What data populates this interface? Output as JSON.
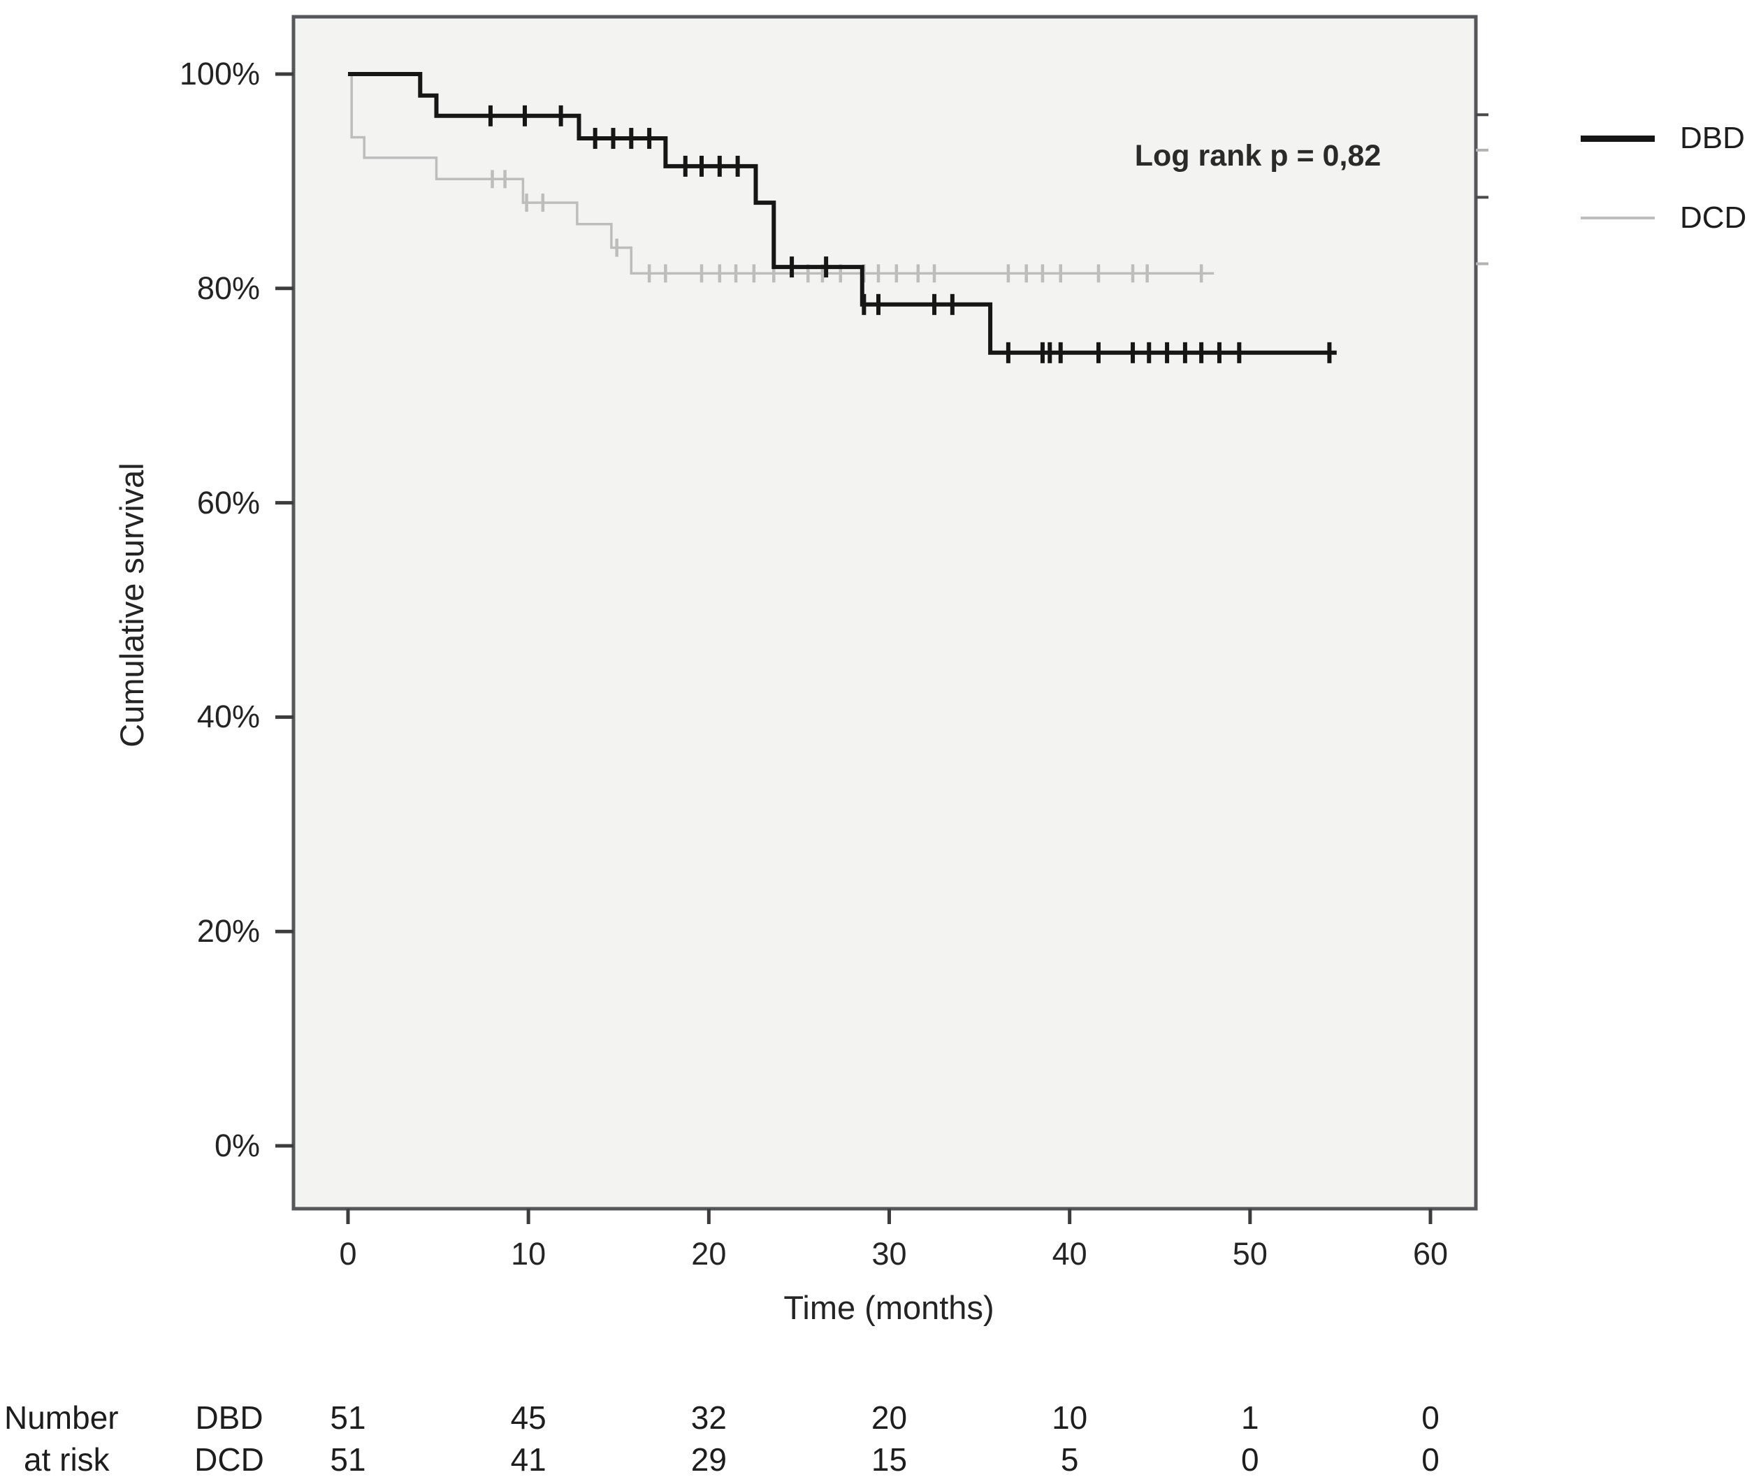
{
  "chart_data": {
    "type": "line",
    "subtype": "kaplan-meier-step",
    "title": "",
    "xlabel": "Time (months)",
    "ylabel": "Cumulative survival",
    "annotation": "Log rank p = 0,82",
    "x_ticks": [
      0,
      10,
      20,
      30,
      40,
      50,
      60
    ],
    "y_ticks_pct": [
      100,
      80,
      60,
      40,
      20,
      0
    ],
    "xlim": [
      -3,
      62.5
    ],
    "ylim_pct": [
      -6,
      107
    ],
    "grid": false,
    "legend_position": "outside-right-top",
    "legend": [
      {
        "name": "DBD"
      },
      {
        "name": "DCD"
      }
    ],
    "series": [
      {
        "name": "DBD",
        "color": "#161616",
        "line_width": 6,
        "points_t_pct": [
          [
            0,
            100
          ],
          [
            4,
            98
          ],
          [
            4.9,
            96.1
          ],
          [
            12.8,
            94
          ],
          [
            17.6,
            91.4
          ],
          [
            22.6,
            88
          ],
          [
            23.6,
            82
          ],
          [
            28.5,
            78.5
          ],
          [
            35.6,
            74
          ]
        ],
        "end_t": 54.8,
        "censor_t_pct": [
          [
            7.9,
            96.1
          ],
          [
            9.8,
            96.1
          ],
          [
            11.8,
            96.1
          ],
          [
            13.7,
            94
          ],
          [
            14.7,
            94
          ],
          [
            15.7,
            94
          ],
          [
            16.7,
            94
          ],
          [
            18.7,
            91.4
          ],
          [
            19.6,
            91.4
          ],
          [
            20.6,
            91.4
          ],
          [
            21.6,
            91.4
          ],
          [
            24.6,
            82
          ],
          [
            26.5,
            82
          ],
          [
            28.6,
            78.5
          ],
          [
            29.4,
            78.5
          ],
          [
            32.5,
            78.5
          ],
          [
            33.5,
            78.5
          ],
          [
            36.6,
            74
          ],
          [
            38.5,
            74
          ],
          [
            38.9,
            74
          ],
          [
            39.5,
            74
          ],
          [
            41.6,
            74
          ],
          [
            43.5,
            74
          ],
          [
            44.4,
            74
          ],
          [
            45.4,
            74
          ],
          [
            46.4,
            74
          ],
          [
            47.3,
            74
          ],
          [
            48.3,
            74
          ],
          [
            49.4,
            74
          ],
          [
            54.4,
            74
          ]
        ]
      },
      {
        "name": "DCD",
        "color": "#bdbdbd",
        "line_width": 3.5,
        "points_t_pct": [
          [
            0,
            100
          ],
          [
            0.2,
            94.1
          ],
          [
            0.9,
            92.2
          ],
          [
            4.9,
            90.2
          ],
          [
            9.7,
            88
          ],
          [
            12.7,
            86
          ],
          [
            14.6,
            83.8
          ],
          [
            15.7,
            81.4
          ]
        ],
        "end_t": 48,
        "censor_t_pct": [
          [
            8,
            90.2
          ],
          [
            8.7,
            90.2
          ],
          [
            9.9,
            88
          ],
          [
            10.8,
            88
          ],
          [
            14.9,
            83.8
          ],
          [
            16.7,
            81.4
          ],
          [
            17.6,
            81.4
          ],
          [
            19.6,
            81.4
          ],
          [
            20.6,
            81.4
          ],
          [
            21.5,
            81.4
          ],
          [
            22.5,
            81.4
          ],
          [
            23.6,
            81.4
          ],
          [
            25.5,
            81.4
          ],
          [
            26.3,
            81.4
          ],
          [
            27.3,
            81.4
          ],
          [
            28.6,
            81.4
          ],
          [
            29.4,
            81.4
          ],
          [
            30.4,
            81.4
          ],
          [
            31.6,
            81.4
          ],
          [
            32.5,
            81.4
          ],
          [
            36.6,
            81.4
          ],
          [
            37.6,
            81.4
          ],
          [
            38.5,
            81.4
          ],
          [
            39.5,
            81.4
          ],
          [
            41.6,
            81.4
          ],
          [
            43.5,
            81.4
          ],
          [
            44.3,
            81.4
          ],
          [
            47.3,
            81.4
          ]
        ]
      }
    ],
    "right_border_ticks": [
      {
        "pct": 96.2,
        "shade": "dark"
      },
      {
        "pct": 92.9,
        "shade": "light"
      },
      {
        "pct": 88.5,
        "shade": "dark"
      },
      {
        "pct": 82.3,
        "shade": "light"
      }
    ],
    "risk_table": {
      "label_line1": "Number",
      "label_line2": "at risk",
      "times": [
        0,
        10,
        20,
        30,
        40,
        50,
        60
      ],
      "rows": [
        {
          "group": "DBD",
          "counts": [
            "51",
            "45",
            "32",
            "20",
            "10",
            "1",
            "0"
          ]
        },
        {
          "group": "DCD",
          "counts": [
            "51",
            "41",
            "29",
            "15",
            "5",
            "0",
            "0"
          ]
        }
      ]
    }
  }
}
